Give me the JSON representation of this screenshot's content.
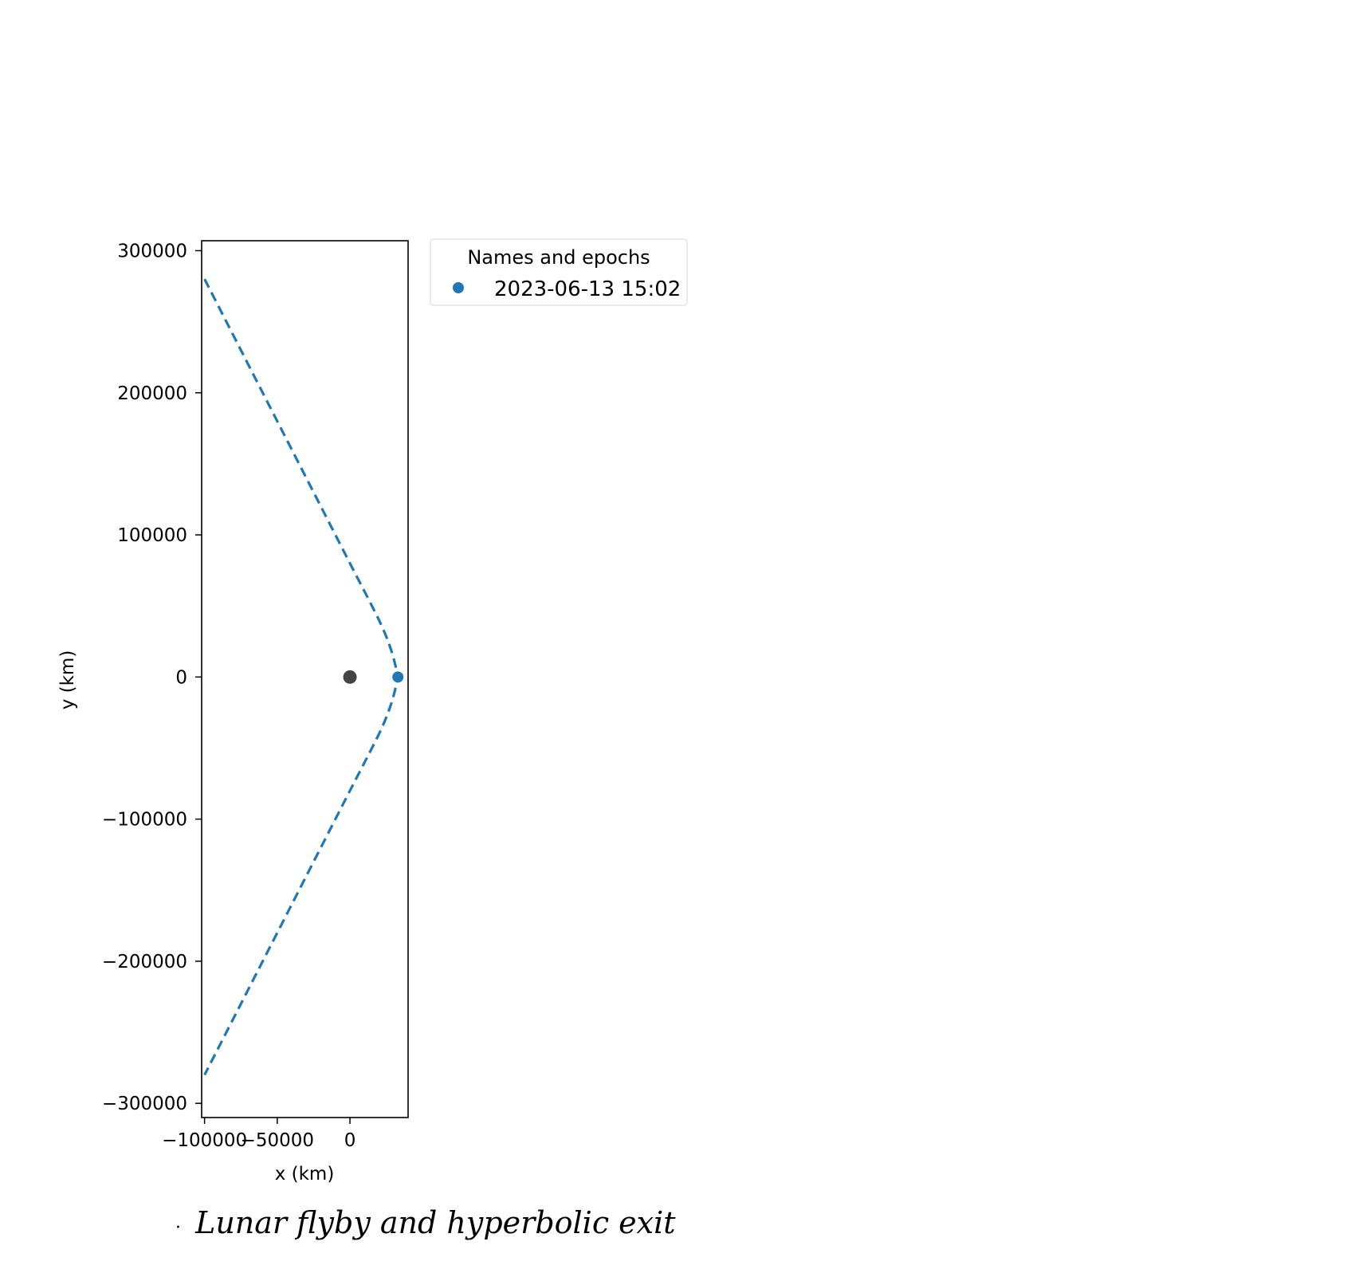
{
  "chart_data": {
    "type": "line",
    "title": "",
    "xlabel": "x (km)",
    "ylabel": "y (km)",
    "xlim": [
      -102000,
      40000
    ],
    "ylim": [
      -310000,
      307000
    ],
    "x_ticks": [
      {
        "value": -100000,
        "label": "−100000"
      },
      {
        "value": -50000,
        "label": "−50000"
      },
      {
        "value": 0,
        "label": "0"
      }
    ],
    "y_ticks": [
      {
        "value": 300000,
        "label": "300000"
      },
      {
        "value": 200000,
        "label": "200000"
      },
      {
        "value": 100000,
        "label": "100000"
      },
      {
        "value": 0,
        "label": "0"
      },
      {
        "value": -100000,
        "label": "−100000"
      },
      {
        "value": -200000,
        "label": "−200000"
      },
      {
        "value": -300000,
        "label": "−300000"
      }
    ],
    "series": [
      {
        "style": "dashed",
        "color": "#1f77b4",
        "points": [
          {
            "x": -100000,
            "y": 280000
          },
          {
            "x": -80000,
            "y": 240000
          },
          {
            "x": -60000,
            "y": 200000
          },
          {
            "x": -40000,
            "y": 160000
          },
          {
            "x": -20000,
            "y": 120000
          },
          {
            "x": 0,
            "y": 80000
          },
          {
            "x": 20000,
            "y": 40000
          },
          {
            "x": 28000,
            "y": 20000
          },
          {
            "x": 32000,
            "y": 5000
          },
          {
            "x": 33000,
            "y": 0
          },
          {
            "x": 32000,
            "y": -5000
          },
          {
            "x": 28000,
            "y": -20000
          },
          {
            "x": 20000,
            "y": -40000
          },
          {
            "x": 0,
            "y": -80000
          },
          {
            "x": -20000,
            "y": -120000
          },
          {
            "x": -40000,
            "y": -160000
          },
          {
            "x": -60000,
            "y": -200000
          },
          {
            "x": -80000,
            "y": -240000
          },
          {
            "x": -100000,
            "y": -280000
          }
        ]
      }
    ],
    "markers": [
      {
        "x": 0,
        "y": 0,
        "color": "#444444"
      },
      {
        "x": 33000,
        "y": 0,
        "color": "#1f77b4"
      }
    ],
    "legend": {
      "title": "Names and epochs",
      "placement": "outside-right",
      "entries": [
        {
          "label": "2023-06-13 15:02",
          "color": "#1f77b4"
        }
      ]
    },
    "grid": false
  },
  "caption": {
    "prefix": "·",
    "text": "Lunar flyby and hyperbolic exit"
  }
}
